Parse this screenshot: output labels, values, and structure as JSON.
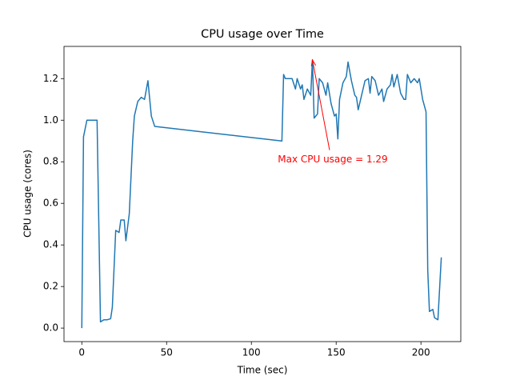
{
  "chart_data": {
    "type": "line",
    "title": "CPU usage over Time",
    "xlabel": "Time (sec)",
    "ylabel": "CPU usage (cores)",
    "x": [
      0,
      1,
      3,
      5,
      7,
      9,
      11,
      13,
      15,
      17,
      18,
      20,
      22,
      23,
      25,
      26,
      28,
      30,
      31,
      33,
      35,
      37,
      39,
      41,
      43,
      118,
      119,
      120,
      122,
      124,
      126,
      127,
      129,
      130,
      131,
      133,
      135,
      136,
      137,
      139,
      140,
      142,
      144,
      145,
      147,
      149,
      150,
      151,
      152,
      154,
      156,
      157,
      159,
      161,
      162,
      163,
      165,
      167,
      169,
      170,
      171,
      173,
      175,
      177,
      178,
      180,
      182,
      183,
      184,
      186,
      188,
      190,
      191,
      192,
      194,
      196,
      198,
      199,
      201,
      203,
      204,
      205,
      207,
      208,
      210,
      212
    ],
    "series": [
      {
        "name": "CPU usage",
        "color": "#1f77b4",
        "values": [
          0.0,
          0.92,
          1.0,
          1.0,
          1.0,
          1.0,
          0.03,
          0.04,
          0.04,
          0.045,
          0.1,
          0.47,
          0.46,
          0.52,
          0.52,
          0.42,
          0.55,
          0.9,
          1.02,
          1.09,
          1.11,
          1.1,
          1.19,
          1.02,
          0.97,
          0.9,
          1.22,
          1.2,
          1.2,
          1.2,
          1.15,
          1.2,
          1.15,
          1.17,
          1.1,
          1.15,
          1.12,
          1.29,
          1.01,
          1.03,
          1.2,
          1.18,
          1.12,
          1.18,
          1.08,
          1.02,
          1.03,
          0.91,
          1.1,
          1.18,
          1.21,
          1.28,
          1.19,
          1.12,
          1.11,
          1.05,
          1.12,
          1.19,
          1.2,
          1.13,
          1.21,
          1.19,
          1.12,
          1.15,
          1.09,
          1.15,
          1.17,
          1.22,
          1.16,
          1.22,
          1.13,
          1.1,
          1.1,
          1.22,
          1.18,
          1.2,
          1.18,
          1.2,
          1.1,
          1.04,
          0.28,
          0.08,
          0.09,
          0.05,
          0.04,
          0.34
        ]
      }
    ],
    "xlim": [
      -10.5,
      223.5
    ],
    "ylim": [
      -0.065,
      1.355
    ],
    "xticks": [
      0,
      50,
      100,
      150,
      200
    ],
    "yticks": [
      {
        "value": 0,
        "label": "0.0"
      },
      0.2,
      0.4,
      0.6,
      0.8,
      {
        "value": 1,
        "label": "1.0"
      },
      1.2
    ],
    "annotation": {
      "text": "Max CPU usage = 1.29",
      "xy": [
        136,
        1.29
      ],
      "xytext": [
        148,
        0.81
      ],
      "color": "#ff0000"
    }
  }
}
